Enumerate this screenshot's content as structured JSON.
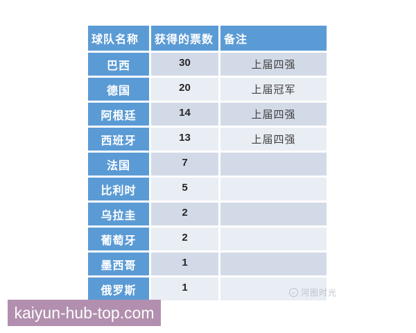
{
  "chart_data": {
    "type": "table",
    "columns": [
      "球队名称",
      "获得的票数",
      "备注"
    ],
    "rows": [
      {
        "team": "巴西",
        "votes": "30",
        "note": "上届四强"
      },
      {
        "team": "德国",
        "votes": "20",
        "note": "上届冠军"
      },
      {
        "team": "阿根廷",
        "votes": "14",
        "note": "上届四强"
      },
      {
        "team": "西班牙",
        "votes": "13",
        "note": "上届四强"
      },
      {
        "team": "法国",
        "votes": "7",
        "note": ""
      },
      {
        "team": "比利时",
        "votes": "5",
        "note": ""
      },
      {
        "team": "乌拉圭",
        "votes": "2",
        "note": ""
      },
      {
        "team": "葡萄牙",
        "votes": "2",
        "note": ""
      },
      {
        "team": "墨西哥",
        "votes": "1",
        "note": ""
      },
      {
        "team": "俄罗斯",
        "votes": "1",
        "note": ""
      }
    ],
    "layout": {
      "banded_rows": true,
      "gridlines": "white-gaps"
    }
  },
  "colors": {
    "header_bg": "#5b9bd5",
    "band_dark": "#d3dae7",
    "band_light": "#e9edf4",
    "banner_bg": "#b28fae",
    "banner_text": "#fdfdfd",
    "watermark_color": "#b9bdc7"
  },
  "watermark": {
    "icon": "circle-logo-icon",
    "text": "河图时光"
  },
  "banner": {
    "text": "kaiyun-hub-top.com"
  }
}
